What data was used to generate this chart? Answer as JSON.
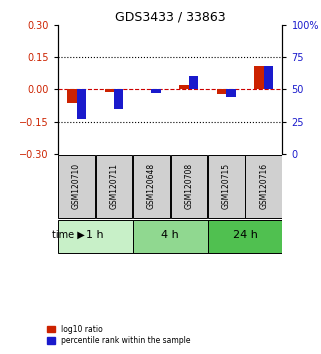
{
  "title": "GDS3433 / 33863",
  "samples": [
    "GSM120710",
    "GSM120711",
    "GSM120648",
    "GSM120708",
    "GSM120715",
    "GSM120716"
  ],
  "log10_ratio": [
    -0.065,
    -0.01,
    0.0,
    0.02,
    -0.02,
    0.11
  ],
  "percentile_rank": [
    27,
    35,
    47,
    60,
    44,
    68
  ],
  "groups": [
    {
      "label": "1 h",
      "indices": [
        0,
        1
      ],
      "color": "#c8f0c8"
    },
    {
      "label": "4 h",
      "indices": [
        2,
        3
      ],
      "color": "#90d890"
    },
    {
      "label": "24 h",
      "indices": [
        4,
        5
      ],
      "color": "#50c050"
    }
  ],
  "ylim_left": [
    -0.3,
    0.3
  ],
  "ylim_right": [
    0,
    100
  ],
  "yticks_left": [
    -0.3,
    -0.15,
    0.0,
    0.15,
    0.3
  ],
  "yticks_right": [
    0,
    25,
    50,
    75,
    100
  ],
  "hline_y": [
    0.15,
    -0.15
  ],
  "bar_color_red": "#cc2200",
  "bar_color_blue": "#1a1acc",
  "dashed_line_color": "#cc0000",
  "tick_color_left": "#cc2200",
  "tick_color_right": "#1a1acc",
  "bar_width": 0.25,
  "legend_red_label": "log10 ratio",
  "legend_blue_label": "percentile rank within the sample",
  "time_label": "time ▶",
  "sample_box_color": "#d0d0d0"
}
